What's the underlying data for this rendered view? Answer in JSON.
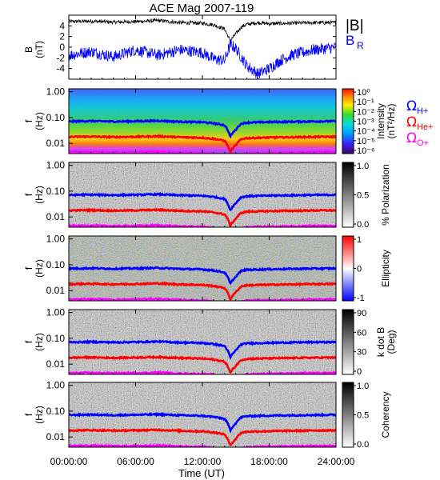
{
  "chart_data": {
    "type": "heatmap",
    "title": "ACE Mag 2007-119",
    "xlabel": "Time (UT)",
    "x_ticks": [
      "00:00:00",
      "06:00:00",
      "12:00:00",
      "18:00:00",
      "24:00:00"
    ],
    "xlim_hours": [
      0,
      24
    ],
    "colors": {
      "total_field": "#000000",
      "radial_field": "#0000ff",
      "gyro_h": "#0000ff",
      "gyro_he": "#ff0000",
      "gyro_o": "#ff00ff"
    },
    "panels": [
      {
        "id": "field",
        "type": "line",
        "ylabel": "B",
        "yunit": "(nT)",
        "ylim": [
          -6,
          6
        ],
        "y_ticks": [
          "4",
          "2",
          "0",
          "-2",
          "-4"
        ],
        "legend": [
          "|B|",
          "B",
          "R"
        ],
        "series": [
          {
            "name": "|B|",
            "x": [
              0,
              2,
              4,
              6,
              8,
              10,
              12,
              13,
              14,
              14.5,
              15,
              15.5,
              16,
              17,
              18,
              20,
              22,
              24
            ],
            "values": [
              4.8,
              4.9,
              4.7,
              4.8,
              5.0,
              4.6,
              4.5,
              4.2,
              3.4,
              1.2,
              2.5,
              3.8,
              4.3,
              4.6,
              4.4,
              4.5,
              4.6,
              4.6
            ]
          },
          {
            "name": "B R",
            "x": [
              0,
              2,
              4,
              6,
              8,
              10,
              12,
              13,
              14,
              14.5,
              15,
              16,
              17,
              18,
              19,
              20,
              22,
              24
            ],
            "values": [
              -1.5,
              -0.8,
              -1.8,
              -0.5,
              -1.5,
              -0.5,
              -1.0,
              -2.2,
              -2.5,
              0.5,
              -0.2,
              -3.5,
              -5.0,
              -4.0,
              -2.5,
              -1.5,
              -0.5,
              0.0
            ]
          }
        ]
      },
      {
        "id": "intensity",
        "type": "heatmap",
        "ylabel": "f",
        "yunit": "(Hz)",
        "y_scale": "log",
        "ylim": [
          0.004,
          1.3
        ],
        "y_ticks": [
          "1.00",
          "0.10",
          "0.01"
        ],
        "colorbar": {
          "label": "Intensity",
          "unit": "(nT²/Hz)",
          "ticks": [
            "10⁰",
            "10⁻¹",
            "10⁻²",
            "10⁻³",
            "10⁻⁴",
            "10⁻⁵",
            "10⁻⁶"
          ]
        }
      },
      {
        "id": "polarization",
        "type": "heatmap",
        "ylabel": "f",
        "yunit": "(Hz)",
        "y_scale": "log",
        "ylim": [
          0.004,
          1.3
        ],
        "y_ticks": [
          "1.00",
          "0.10",
          "0.01"
        ],
        "colorbar": {
          "label": "% Polarization",
          "unit": "",
          "ticks": [
            "1.0",
            "0.5",
            "0.0"
          ]
        }
      },
      {
        "id": "ellipticity",
        "type": "heatmap",
        "ylabel": "f",
        "yunit": "(Hz)",
        "y_scale": "log",
        "ylim": [
          0.004,
          1.3
        ],
        "y_ticks": [
          "1.00",
          "0.10",
          "0.01"
        ],
        "colorbar": {
          "label": "Ellipticity",
          "unit": "",
          "ticks": [
            "1",
            "0",
            "-1"
          ]
        }
      },
      {
        "id": "kdotb",
        "type": "heatmap",
        "ylabel": "f",
        "yunit": "(Hz)",
        "y_scale": "log",
        "ylim": [
          0.004,
          1.3
        ],
        "y_ticks": [
          "1.00",
          "0.10",
          "0.01"
        ],
        "colorbar": {
          "label": "k dot B",
          "unit": "(Deg)",
          "ticks": [
            "90",
            "60",
            "30",
            "0"
          ]
        }
      },
      {
        "id": "coherency",
        "type": "heatmap",
        "ylabel": "f",
        "yunit": "(Hz)",
        "y_scale": "log",
        "ylim": [
          0.004,
          1.3
        ],
        "y_ticks": [
          "1.00",
          "0.10",
          "0.01"
        ],
        "colorbar": {
          "label": "Coherency",
          "unit": "",
          "ticks": [
            "1.0",
            "0.5",
            "0.0"
          ]
        }
      }
    ],
    "gyrofrequency_legend": [
      {
        "symbol": "Ω",
        "sub": "H+"
      },
      {
        "symbol": "Ω",
        "sub": "He+"
      },
      {
        "symbol": "Ω",
        "sub": "O+"
      }
    ],
    "gyrofrequency_lines": {
      "x": [
        0,
        2,
        4,
        6,
        8,
        10,
        12,
        13,
        14,
        14.5,
        15,
        15.5,
        16,
        18,
        20,
        22,
        24
      ],
      "H+": [
        0.071,
        0.073,
        0.07,
        0.072,
        0.075,
        0.069,
        0.066,
        0.06,
        0.05,
        0.018,
        0.034,
        0.058,
        0.064,
        0.067,
        0.069,
        0.071,
        0.072
      ],
      "He+": [
        0.0178,
        0.0183,
        0.0175,
        0.018,
        0.0188,
        0.0173,
        0.0165,
        0.015,
        0.0125,
        0.0045,
        0.0085,
        0.0145,
        0.016,
        0.0168,
        0.0173,
        0.0178,
        0.018
      ],
      "O+": [
        0.0045,
        0.0046,
        0.0044,
        0.0045,
        0.0047,
        0.0043,
        0.0041,
        0.0038,
        0.0031,
        0.0015,
        0.0021,
        0.0036,
        0.004,
        0.0042,
        0.0043,
        0.0045,
        0.0045
      ]
    }
  }
}
